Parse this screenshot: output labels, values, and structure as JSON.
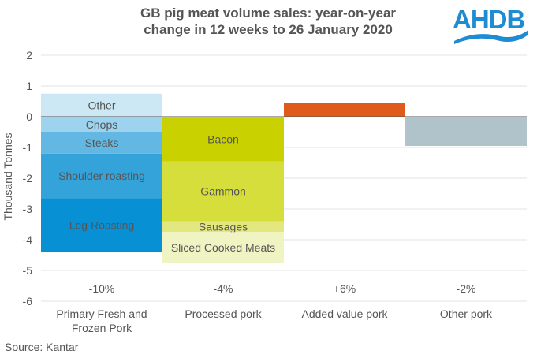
{
  "chart_data": {
    "type": "bar",
    "stacked": true,
    "title_line1": "GB pig meat volume sales: year-on-year",
    "title_line2": "change in 12 weeks to 26 January 2020",
    "ylabel": "Thousand Tonnes",
    "ylim": [
      -6,
      2
    ],
    "yticks": [
      "2",
      "1",
      "0",
      "-1",
      "-2",
      "-3",
      "-4",
      "-5",
      "-6"
    ],
    "ytick_values": [
      2,
      1,
      0,
      -1,
      -2,
      -3,
      -4,
      -5,
      -6
    ],
    "grid": true,
    "categories": [
      "Primary Fresh and Frozen Pork",
      "Processed pork",
      "Added value pork",
      "Other pork"
    ],
    "category_lines": [
      [
        "Primary Fresh and",
        "Frozen Pork"
      ],
      [
        "Processed pork"
      ],
      [
        "Added value pork"
      ],
      [
        "Other pork"
      ]
    ],
    "pct_change": [
      "-10%",
      "-4%",
      "+6%",
      "-2%"
    ],
    "segments": [
      [
        {
          "name": "Other",
          "value": 0.75,
          "color": "#cce8f4"
        },
        {
          "name": "Chops",
          "value": -0.5,
          "color": "#9dd3ee"
        },
        {
          "name": "Steaks",
          "value": -0.7,
          "color": "#63b8e3"
        },
        {
          "name": "Shoulder roasting",
          "value": -1.45,
          "color": "#33a3da"
        },
        {
          "name": "Leg Roasting",
          "value": -1.75,
          "color": "#0890d4"
        }
      ],
      [
        {
          "name": "Bacon",
          "value": -1.45,
          "color": "#c9d200"
        },
        {
          "name": "Gammon",
          "value": -1.95,
          "color": "#d6de3c"
        },
        {
          "name": "Sausages",
          "value": -0.35,
          "color": "#e3e77f"
        },
        {
          "name": "Sliced Cooked Meats",
          "value": -1.0,
          "color": "#f0f3c2"
        }
      ],
      [
        {
          "name": "",
          "value": 0.45,
          "color": "#e05a1b"
        }
      ],
      [
        {
          "name": "",
          "value": -0.95,
          "color": "#b0c3cb"
        }
      ]
    ]
  },
  "source": "Source:  Kantar",
  "logo_text": "AHDB"
}
